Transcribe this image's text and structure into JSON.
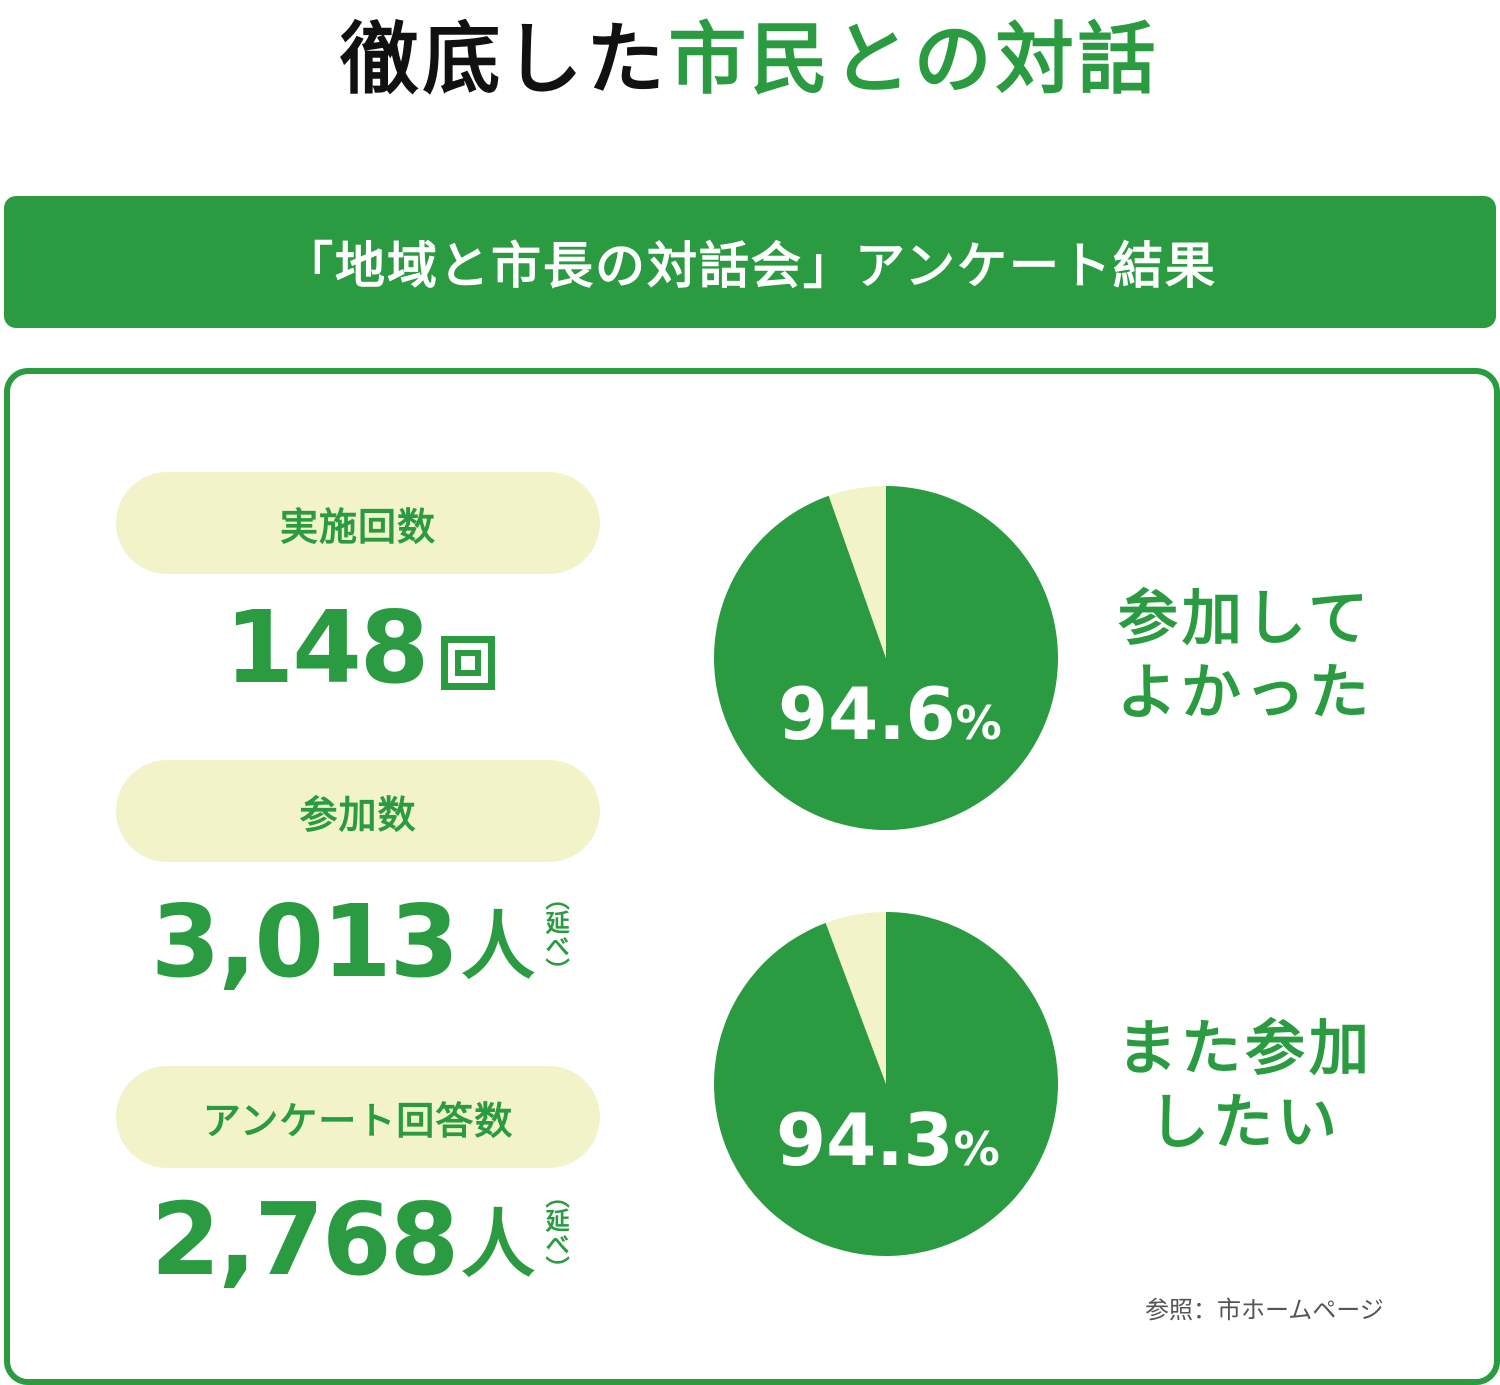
{
  "title": {
    "part1": "徹底した",
    "part2": "市民との対話"
  },
  "banner": "「地域と市長の対話会」アンケート結果",
  "stats": [
    {
      "label": "実施回数",
      "value": "148",
      "unit": "回",
      "note": ""
    },
    {
      "label": "参加数",
      "value": "3,013",
      "unit": "人",
      "note": "（延べ）"
    },
    {
      "label": "アンケート回答数",
      "value": "2,768",
      "unit": "人",
      "note": "（延べ）"
    }
  ],
  "colors": {
    "green": "#2a9b41",
    "cream": "#f2f3c9"
  },
  "chart_data": [
    {
      "type": "pie",
      "title": "参加してよかった",
      "caption_lines": [
        "参加して",
        "よかった"
      ],
      "label_value": "94.6",
      "label_unit": "%",
      "slices": [
        {
          "value": 94.6,
          "color": "#2a9b41"
        },
        {
          "value": 5.4,
          "color": "#f2f3c9"
        }
      ]
    },
    {
      "type": "pie",
      "title": "また参加したい",
      "caption_lines": [
        "また参加",
        "したい"
      ],
      "label_value": "94.3",
      "label_unit": "%",
      "slices": [
        {
          "value": 94.3,
          "color": "#2a9b41"
        },
        {
          "value": 5.7,
          "color": "#f2f3c9"
        }
      ]
    }
  ],
  "source": "参照：市ホームページ"
}
